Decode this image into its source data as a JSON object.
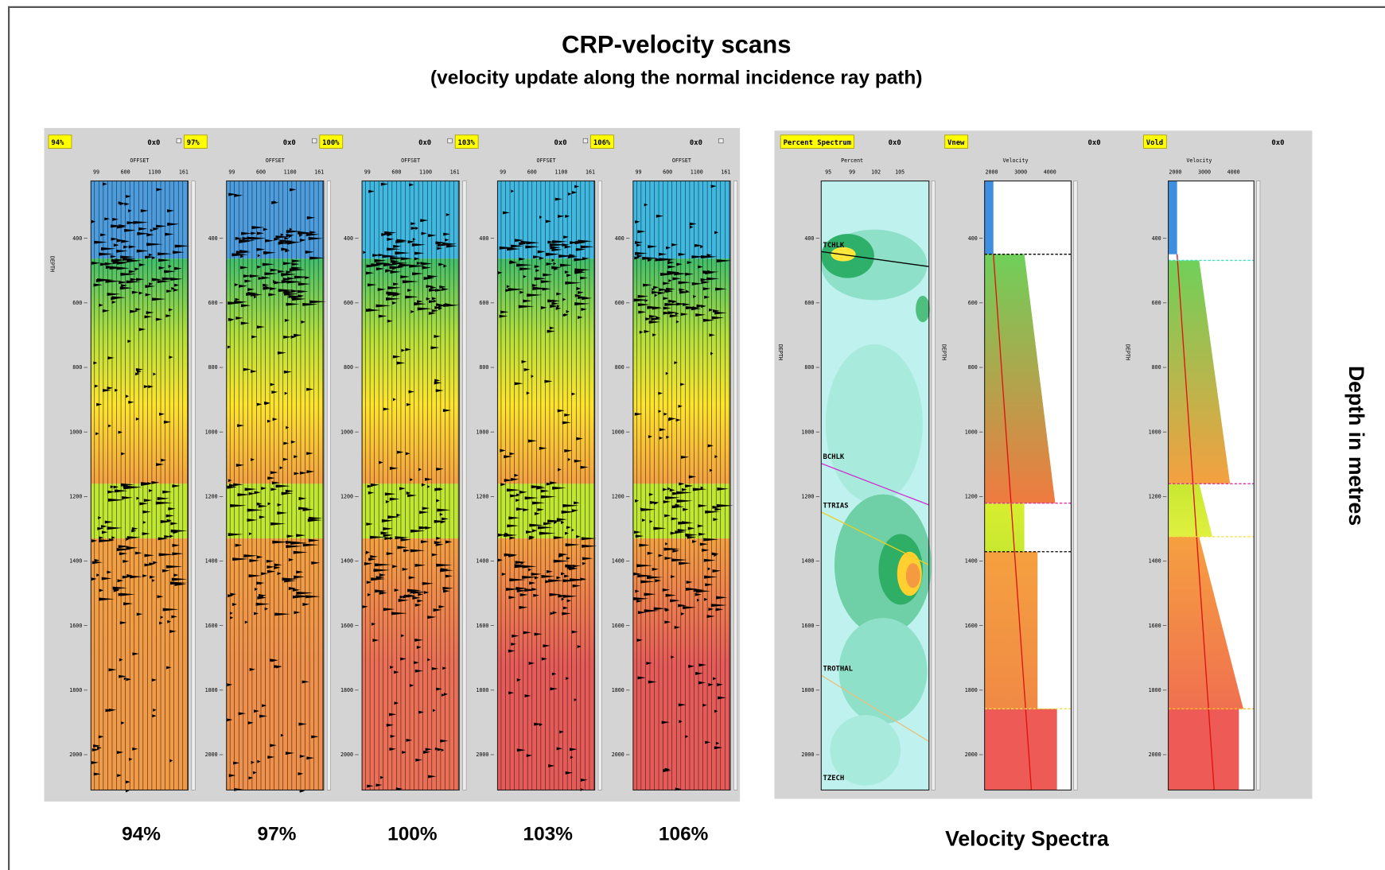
{
  "title": "CRP-velocity scans",
  "subtitle": "(velocity update along the normal incidence ray path)",
  "scans": [
    {
      "tag": "94%",
      "caption": "94%"
    },
    {
      "tag": "97%",
      "caption": "97%"
    },
    {
      "tag": "100%",
      "caption": "100%"
    },
    {
      "tag": "103%",
      "caption": "103%"
    },
    {
      "tag": "106%",
      "caption": "106%"
    }
  ],
  "header_code": "0x0",
  "offset_label": "OFFSET",
  "offset_ticks": [
    99,
    600,
    1100,
    161
  ],
  "depth_label": "DEPTH",
  "depth_ticks": [
    400,
    600,
    800,
    1000,
    1200,
    1400,
    1600,
    1800,
    2000
  ],
  "spectra": {
    "panels": [
      {
        "tag": "Percent Spectrum",
        "axis_label": "Percent",
        "ticks": [
          95,
          99,
          102,
          105
        ]
      },
      {
        "tag": "Vnew",
        "axis_label": "Velocity",
        "ticks": [
          2000,
          3000,
          4000
        ]
      },
      {
        "tag": "Vold",
        "axis_label": "Velocity",
        "ticks": [
          2000,
          3000,
          4000
        ]
      }
    ],
    "horizons": [
      "TCHLK",
      "BCHLK",
      "TTRIAS",
      "TROTHAL",
      "TZECH"
    ],
    "caption": "Velocity Spectra"
  },
  "side_label": "Depth in metres"
}
